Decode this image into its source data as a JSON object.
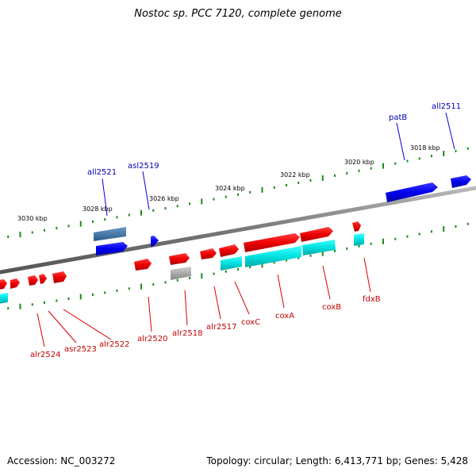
{
  "title": "Nostoc sp. PCC 7120, complete genome",
  "footer": {
    "accession": "Accession: NC_003272",
    "summary": "Topology: circular; Length: 6,413,771 bp; Genes: 5,428"
  },
  "ticks": [
    "3030 kbp",
    "3028 kbp",
    "3026 kbp",
    "3024 kbp",
    "3022 kbp",
    "3020 kbp",
    "3018 kbp"
  ],
  "genes_top": [
    "all2521",
    "asl2519",
    "patB",
    "all2511"
  ],
  "genes_bottom": [
    "alr2524",
    "asr2523",
    "alr2522",
    "alr2520",
    "alr2518",
    "alr2517",
    "coxC",
    "coxA",
    "coxB",
    "fdxB"
  ],
  "colors": {
    "reverse_strand": "#0000ee",
    "forward_strand": "#ee0000",
    "rna": "#00e8e8",
    "steelblue_gene": "#4a7aa8",
    "pseudo_gray": "#aaaaaa",
    "backbone": "#777777",
    "tick": "#1a8a1a"
  }
}
